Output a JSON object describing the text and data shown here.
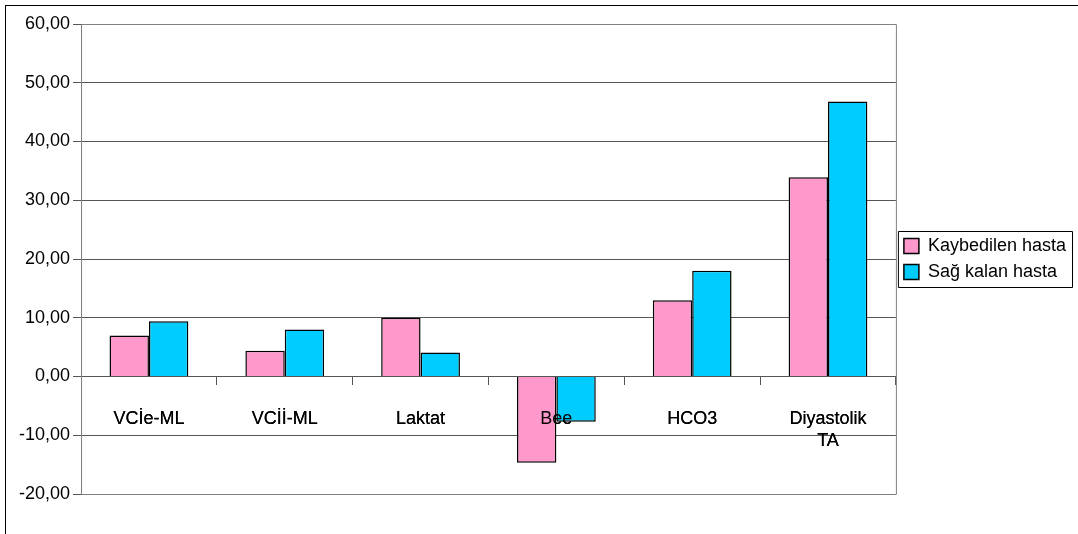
{
  "chart_data": {
    "type": "bar",
    "categories": [
      "VCİe-ML",
      "VCİİ-ML",
      "Laktat",
      "Bee",
      "HCO3",
      "Diyastolik TA"
    ],
    "series": [
      {
        "name": "Kaybedilen hasta",
        "color": "#ff99cc",
        "values": [
          7.0,
          4.4,
          10.0,
          -14.7,
          13.0,
          33.9
        ]
      },
      {
        "name": "Sağ kalan hasta",
        "color": "#00ccff",
        "values": [
          9.4,
          8.0,
          4.1,
          -7.7,
          18.0,
          46.8
        ]
      }
    ],
    "ylim": [
      -20,
      60
    ],
    "yticks": [
      {
        "value": -20,
        "label": "-20,00"
      },
      {
        "value": -10,
        "label": "-10,00"
      },
      {
        "value": 0,
        "label": "0,00"
      },
      {
        "value": 10,
        "label": "10,00"
      },
      {
        "value": 20,
        "label": "20,00"
      },
      {
        "value": 30,
        "label": "30,00"
      },
      {
        "value": 40,
        "label": "40,00"
      },
      {
        "value": 50,
        "label": "50,00"
      },
      {
        "value": 60,
        "label": "60,00"
      }
    ],
    "grid": "y",
    "legend": "right"
  }
}
